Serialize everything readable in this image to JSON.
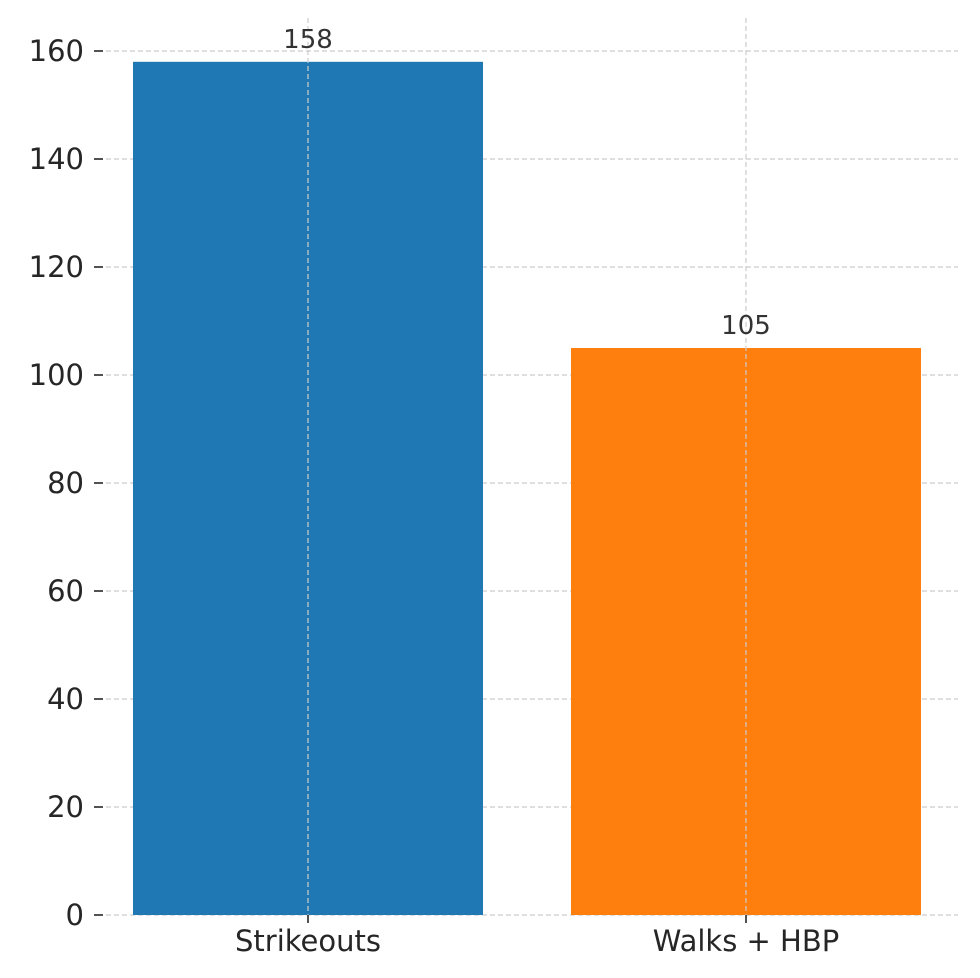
{
  "chart_data": {
    "type": "bar",
    "categories": [
      "Strikeouts",
      "Walks + HBP"
    ],
    "values": [
      158,
      105
    ],
    "data_labels": [
      "158",
      "105"
    ],
    "colors": [
      "#1f77b4",
      "#ff7f0e"
    ],
    "title": "",
    "xlabel": "",
    "ylabel": "",
    "ylim": [
      0,
      165
    ],
    "yticks": [
      0,
      20,
      40,
      60,
      80,
      100,
      120,
      140,
      160
    ],
    "ytick_labels": [
      "0",
      "20",
      "40",
      "60",
      "80",
      "100",
      "120",
      "140",
      "160"
    ],
    "grid": true,
    "legend": "none"
  }
}
